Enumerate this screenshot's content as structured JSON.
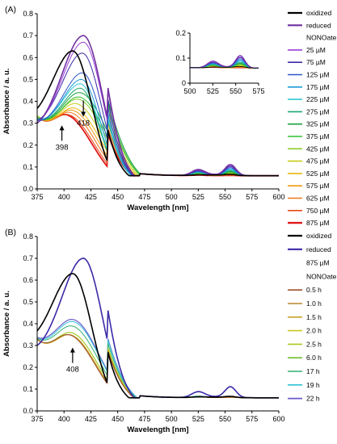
{
  "chart_data": [
    {
      "type": "line",
      "panel_label": "(A)",
      "xlabel": "Wavelength [nm]",
      "ylabel": "Absorbance / a. u.",
      "xlim": [
        375,
        600
      ],
      "ylim": [
        0,
        0.8
      ],
      "x_ticks": [
        375,
        400,
        425,
        450,
        475,
        500,
        525,
        550,
        575,
        600
      ],
      "y_ticks": [
        0.0,
        0.1,
        0.2,
        0.3,
        0.4,
        0.5,
        0.6,
        0.7,
        0.8
      ],
      "x_tick_labels": [
        "375",
        "400",
        "425",
        "450",
        "475",
        "500",
        "525",
        "550",
        "575",
        "600"
      ],
      "y_tick_labels": [
        "0.0",
        "0.1",
        "0.2",
        "0.3",
        "0.4",
        "0.5",
        "0.6",
        "0.7",
        "0.8"
      ],
      "grid": false,
      "legend_position": "right",
      "legend_heading": "NONOate",
      "annotations": [
        {
          "text": "398",
          "x": 398,
          "arrow": "up"
        },
        {
          "text": "418",
          "x": 418,
          "arrow": "down"
        }
      ],
      "series": [
        {
          "name": "oxidized",
          "color": "#000000",
          "width": 1.6,
          "peak": 408,
          "peak_h": 0.63,
          "left": 0.2,
          "q": [
            0.062,
            0.066,
            0.065,
            0.06
          ]
        },
        {
          "name": "reduced",
          "color": "#7030a0",
          "width": 1.6,
          "peak": 418,
          "peak_h": 0.7,
          "left": 0.2,
          "q": [
            0.085,
            0.07,
            0.108,
            0.06
          ]
        },
        {
          "name": "25 µM",
          "color": "#9a3fd6",
          "width": 1.0,
          "peak": 418,
          "peak_h": 0.67,
          "left": 0.21,
          "q": [
            0.082,
            0.069,
            0.104,
            0.06
          ]
        },
        {
          "name": "75 µM",
          "color": "#3a2aa8",
          "width": 1.0,
          "peak": 417,
          "peak_h": 0.62,
          "left": 0.23,
          "q": [
            0.08,
            0.068,
            0.1,
            0.06
          ]
        },
        {
          "name": "125 µM",
          "color": "#2c55c8",
          "width": 1.0,
          "peak": 417,
          "peak_h": 0.53,
          "left": 0.25,
          "q": [
            0.078,
            0.067,
            0.095,
            0.06
          ]
        },
        {
          "name": "175 µM",
          "color": "#1a9ad8",
          "width": 1.0,
          "peak": 416,
          "peak_h": 0.5,
          "left": 0.26,
          "q": [
            0.076,
            0.066,
            0.09,
            0.06
          ]
        },
        {
          "name": "225 µM",
          "color": "#2ec8d6",
          "width": 1.0,
          "peak": 415,
          "peak_h": 0.48,
          "left": 0.27,
          "q": [
            0.074,
            0.066,
            0.086,
            0.06
          ]
        },
        {
          "name": "275 µM",
          "color": "#1aa870",
          "width": 1.0,
          "peak": 415,
          "peak_h": 0.46,
          "left": 0.28,
          "q": [
            0.072,
            0.065,
            0.082,
            0.06
          ]
        },
        {
          "name": "325 µM",
          "color": "#18a040",
          "width": 1.0,
          "peak": 414,
          "peak_h": 0.44,
          "left": 0.28,
          "q": [
            0.071,
            0.065,
            0.078,
            0.06
          ]
        },
        {
          "name": "375 µM",
          "color": "#30c030",
          "width": 1.0,
          "peak": 413,
          "peak_h": 0.42,
          "left": 0.29,
          "q": [
            0.07,
            0.064,
            0.075,
            0.06
          ]
        },
        {
          "name": "425 µM",
          "color": "#8ccc28",
          "width": 1.0,
          "peak": 412,
          "peak_h": 0.41,
          "left": 0.3,
          "q": [
            0.068,
            0.064,
            0.072,
            0.06
          ]
        },
        {
          "name": "475 µM",
          "color": "#c8cc18",
          "width": 1.0,
          "peak": 410,
          "peak_h": 0.39,
          "left": 0.3,
          "q": [
            0.067,
            0.063,
            0.069,
            0.06
          ]
        },
        {
          "name": "525 µM",
          "color": "#e8b810",
          "width": 1.0,
          "peak": 408,
          "peak_h": 0.37,
          "left": 0.31,
          "q": [
            0.066,
            0.063,
            0.066,
            0.06
          ]
        },
        {
          "name": "575 µM",
          "color": "#f29a10",
          "width": 1.0,
          "peak": 406,
          "peak_h": 0.36,
          "left": 0.31,
          "q": [
            0.065,
            0.062,
            0.064,
            0.06
          ]
        },
        {
          "name": "625 µM",
          "color": "#f07818",
          "width": 1.0,
          "peak": 404,
          "peak_h": 0.35,
          "left": 0.32,
          "q": [
            0.064,
            0.062,
            0.063,
            0.06
          ]
        },
        {
          "name": "750 µM",
          "color": "#e84818",
          "width": 1.0,
          "peak": 402,
          "peak_h": 0.34,
          "left": 0.32,
          "q": [
            0.063,
            0.062,
            0.062,
            0.06
          ]
        },
        {
          "name": "875 µM",
          "color": "#e01818",
          "width": 1.8,
          "peak": 400,
          "peak_h": 0.34,
          "left": 0.32,
          "q": [
            0.062,
            0.061,
            0.061,
            0.06
          ]
        }
      ],
      "inset": {
        "xlim": [
          500,
          575
        ],
        "ylim": [
          0,
          0.2
        ],
        "x_ticks": [
          500,
          525,
          550,
          575
        ],
        "y_ticks": [
          0,
          0.1,
          0.2
        ],
        "x_tick_labels": [
          "500",
          "525",
          "550",
          "575"
        ],
        "y_tick_labels": [
          "0",
          "0.1",
          "0.2"
        ]
      }
    },
    {
      "type": "line",
      "panel_label": "(B)",
      "xlabel": "Wavelength [nm]",
      "ylabel": "Absorbance / a. u.",
      "xlim": [
        375,
        600
      ],
      "ylim": [
        0,
        0.8
      ],
      "x_ticks": [
        375,
        400,
        425,
        450,
        475,
        500,
        525,
        550,
        575,
        600
      ],
      "y_ticks": [
        0.0,
        0.1,
        0.2,
        0.3,
        0.4,
        0.5,
        0.6,
        0.7,
        0.8
      ],
      "x_tick_labels": [
        "375",
        "400",
        "425",
        "450",
        "475",
        "500",
        "525",
        "550",
        "575",
        "600"
      ],
      "y_tick_labels": [
        "0.0",
        "0.1",
        "0.2",
        "0.3",
        "0.4",
        "0.5",
        "0.6",
        "0.7",
        "0.8"
      ],
      "grid": false,
      "legend_position": "right",
      "legend_heading": "875 µM\nNONOate",
      "annotations": [
        {
          "text": "408",
          "x": 408,
          "arrow": "up"
        }
      ],
      "series": [
        {
          "name": "oxidized",
          "color": "#000000",
          "width": 1.6,
          "peak": 408,
          "peak_h": 0.63,
          "left": 0.2,
          "q": [
            0.062,
            0.066,
            0.065,
            0.06
          ]
        },
        {
          "name": "reduced",
          "color": "#3a2aa8",
          "width": 1.6,
          "peak": 418,
          "peak_h": 0.7,
          "left": 0.2,
          "q": [
            0.085,
            0.07,
            0.108,
            0.06
          ]
        },
        {
          "name": "0.5 h",
          "color": "#a0522d",
          "width": 1.0,
          "peak": 403,
          "peak_h": 0.35,
          "left": 0.31,
          "q": [
            0.063,
            0.062,
            0.062,
            0.06
          ]
        },
        {
          "name": "1.0 h",
          "color": "#b8862b",
          "width": 1.0,
          "peak": 403,
          "peak_h": 0.35,
          "left": 0.31,
          "q": [
            0.063,
            0.062,
            0.062,
            0.06
          ]
        },
        {
          "name": "1.5 h",
          "color": "#c9a227",
          "width": 1.0,
          "peak": 404,
          "peak_h": 0.35,
          "left": 0.31,
          "q": [
            0.063,
            0.062,
            0.062,
            0.06
          ]
        },
        {
          "name": "2.0 h",
          "color": "#c8c820",
          "width": 1.0,
          "peak": 404,
          "peak_h": 0.35,
          "left": 0.31,
          "q": [
            0.063,
            0.062,
            0.062,
            0.06
          ]
        },
        {
          "name": "2.5 h",
          "color": "#a8cc20",
          "width": 1.0,
          "peak": 405,
          "peak_h": 0.36,
          "left": 0.3,
          "q": [
            0.064,
            0.063,
            0.063,
            0.06
          ]
        },
        {
          "name": "6.0 h",
          "color": "#70c030",
          "width": 1.0,
          "peak": 405,
          "peak_h": 0.36,
          "left": 0.3,
          "q": [
            0.064,
            0.063,
            0.063,
            0.06
          ]
        },
        {
          "name": "17  h",
          "color": "#30b070",
          "width": 1.0,
          "peak": 406,
          "peak_h": 0.39,
          "left": 0.29,
          "q": [
            0.065,
            0.064,
            0.064,
            0.06
          ]
        },
        {
          "name": "19  h",
          "color": "#30c0d8",
          "width": 1.0,
          "peak": 407,
          "peak_h": 0.41,
          "left": 0.28,
          "q": [
            0.066,
            0.064,
            0.065,
            0.06
          ]
        },
        {
          "name": "22  h",
          "color": "#6a5acd",
          "width": 1.2,
          "peak": 407,
          "peak_h": 0.42,
          "left": 0.28,
          "q": [
            0.066,
            0.064,
            0.065,
            0.06
          ]
        }
      ]
    }
  ]
}
